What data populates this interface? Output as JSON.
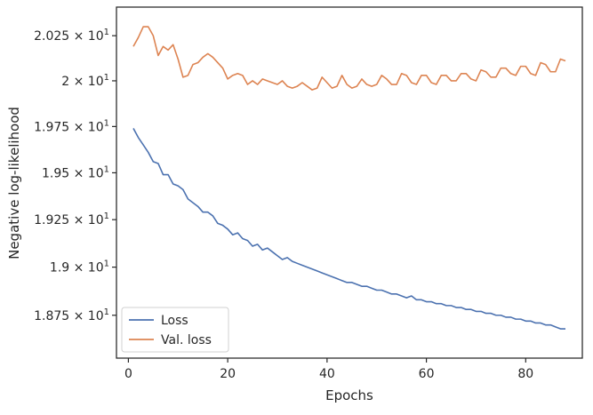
{
  "chart_data": {
    "type": "line",
    "title": "",
    "xlabel": "Epochs",
    "ylabel": "Negative log-likelihood",
    "xlim": [
      -2.4,
      91.4
    ],
    "ylim": [
      18.53,
      20.41
    ],
    "yscale": "log",
    "grid": false,
    "legend_position": "lower-left",
    "x_ticks": [
      {
        "value": 0,
        "label": "0"
      },
      {
        "value": 20,
        "label": "20"
      },
      {
        "value": 40,
        "label": "40"
      },
      {
        "value": 60,
        "label": "60"
      },
      {
        "value": 80,
        "label": "80"
      }
    ],
    "y_ticks": [
      {
        "value": 18.75,
        "base": "1.875",
        "exp": "1"
      },
      {
        "value": 19.0,
        "base": "1.9",
        "exp": "1"
      },
      {
        "value": 19.25,
        "base": "1.925",
        "exp": "1"
      },
      {
        "value": 19.5,
        "base": "1.95",
        "exp": "1"
      },
      {
        "value": 19.75,
        "base": "1.975",
        "exp": "1"
      },
      {
        "value": 20.0,
        "base": "2",
        "exp": "1"
      },
      {
        "value": 20.25,
        "base": "2.025",
        "exp": "1"
      }
    ],
    "series": [
      {
        "name": "Loss",
        "color": "#4c72b0",
        "values": [
          19.74,
          19.69,
          19.65,
          19.61,
          19.56,
          19.55,
          19.49,
          19.49,
          19.44,
          19.43,
          19.41,
          19.36,
          19.34,
          19.32,
          19.29,
          19.29,
          19.27,
          19.23,
          19.22,
          19.2,
          19.17,
          19.18,
          19.15,
          19.14,
          19.11,
          19.12,
          19.09,
          19.1,
          19.08,
          19.06,
          19.04,
          19.05,
          19.03,
          19.02,
          19.01,
          19.0,
          18.99,
          18.98,
          18.97,
          18.96,
          18.95,
          18.94,
          18.93,
          18.92,
          18.92,
          18.91,
          18.9,
          18.9,
          18.89,
          18.88,
          18.88,
          18.87,
          18.86,
          18.86,
          18.85,
          18.84,
          18.85,
          18.83,
          18.83,
          18.82,
          18.82,
          18.81,
          18.81,
          18.8,
          18.8,
          18.79,
          18.79,
          18.78,
          18.78,
          18.77,
          18.77,
          18.76,
          18.76,
          18.75,
          18.75,
          18.74,
          18.74,
          18.73,
          18.73,
          18.72,
          18.72,
          18.71,
          18.71,
          18.7,
          18.7,
          18.69,
          18.68,
          18.68
        ]
      },
      {
        "name": "Val. loss",
        "color": "#dd8452",
        "values": [
          20.19,
          20.24,
          20.3,
          20.3,
          20.25,
          20.14,
          20.19,
          20.17,
          20.2,
          20.12,
          20.02,
          20.03,
          20.09,
          20.1,
          20.13,
          20.15,
          20.13,
          20.1,
          20.07,
          20.01,
          20.03,
          20.04,
          20.03,
          19.98,
          20.0,
          19.98,
          20.01,
          20.0,
          19.99,
          19.98,
          20.0,
          19.97,
          19.96,
          19.97,
          19.99,
          19.97,
          19.95,
          19.96,
          20.02,
          19.99,
          19.96,
          19.97,
          20.03,
          19.98,
          19.96,
          19.97,
          20.01,
          19.98,
          19.97,
          19.98,
          20.03,
          20.01,
          19.98,
          19.98,
          20.04,
          20.03,
          19.99,
          19.98,
          20.03,
          20.03,
          19.99,
          19.98,
          20.03,
          20.03,
          20.0,
          20.0,
          20.04,
          20.04,
          20.01,
          20.0,
          20.06,
          20.05,
          20.02,
          20.02,
          20.07,
          20.07,
          20.04,
          20.03,
          20.08,
          20.08,
          20.04,
          20.03,
          20.1,
          20.09,
          20.05,
          20.05,
          20.12,
          20.11
        ]
      }
    ]
  }
}
